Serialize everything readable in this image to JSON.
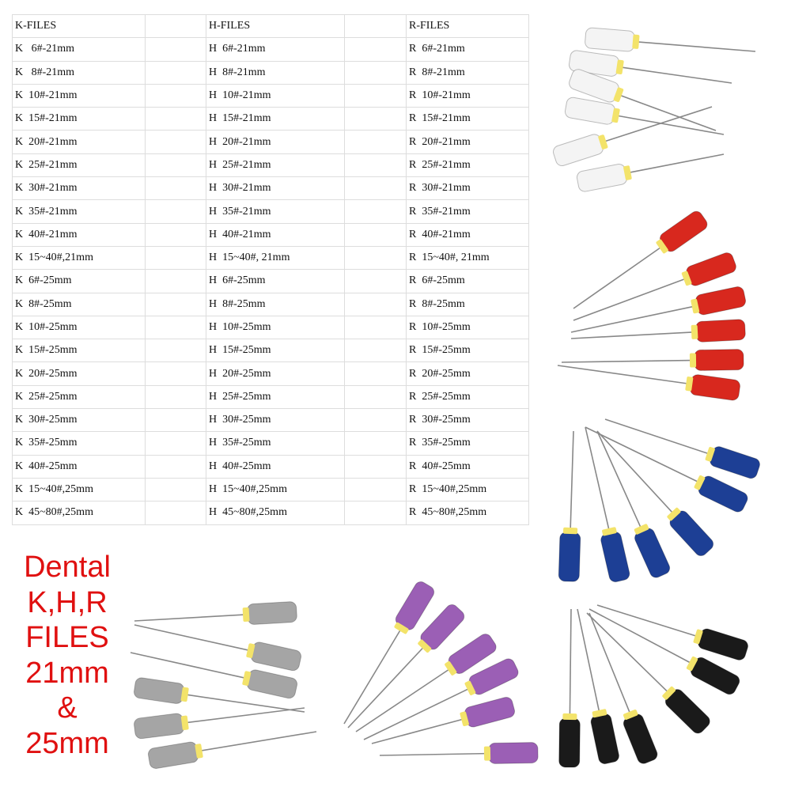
{
  "table": {
    "header": [
      "K-FILES",
      "H-FILES",
      "R-FILES"
    ],
    "rows": [
      [
        "K   6#-21mm",
        "H  6#-21mm",
        "R  6#-21mm"
      ],
      [
        "K   8#-21mm",
        "H  8#-21mm",
        "R  8#-21mm"
      ],
      [
        "K  10#-21mm",
        "H  10#-21mm",
        "R  10#-21mm"
      ],
      [
        "K  15#-21mm",
        "H  15#-21mm",
        "R  15#-21mm"
      ],
      [
        "K  20#-21mm",
        "H  20#-21mm",
        "R  20#-21mm"
      ],
      [
        "K  25#-21mm",
        "H  25#-21mm",
        "R  25#-21mm"
      ],
      [
        "K  30#-21mm",
        "H  30#-21mm",
        "R  30#-21mm"
      ],
      [
        "K  35#-21mm",
        "H  35#-21mm",
        "R  35#-21mm"
      ],
      [
        "K  40#-21mm",
        "H  40#-21mm",
        "R  40#-21mm"
      ],
      [
        "K  15~40#,21mm",
        "H  15~40#, 21mm",
        "R  15~40#, 21mm"
      ],
      [
        "K  6#-25mm",
        "H  6#-25mm",
        "R  6#-25mm"
      ],
      [
        "K  8#-25mm",
        "H  8#-25mm",
        "R  8#-25mm"
      ],
      [
        "K  10#-25mm",
        "H  10#-25mm",
        "R  10#-25mm"
      ],
      [
        "K  15#-25mm",
        "H  15#-25mm",
        "R  15#-25mm"
      ],
      [
        "K  20#-25mm",
        "H  20#-25mm",
        "R  20#-25mm"
      ],
      [
        "K  25#-25mm",
        "H  25#-25mm",
        "R  25#-25mm"
      ],
      [
        "K  30#-25mm",
        "H  30#-25mm",
        "R  30#-25mm"
      ],
      [
        "K  35#-25mm",
        "H  35#-25mm",
        "R  35#-25mm"
      ],
      [
        "K  40#-25mm",
        "H  40#-25mm",
        "R  40#-25mm"
      ],
      [
        "K  15~40#,25mm",
        "H  15~40#,25mm",
        "R  15~40#,25mm"
      ],
      [
        "K  45~80#,25mm",
        "H  45~80#,25mm",
        "R  45~80#,25mm"
      ]
    ]
  },
  "caption": {
    "lines": [
      "Dental",
      "K,H,R",
      "FILES",
      "21mm",
      "&",
      "25mm"
    ]
  }
}
